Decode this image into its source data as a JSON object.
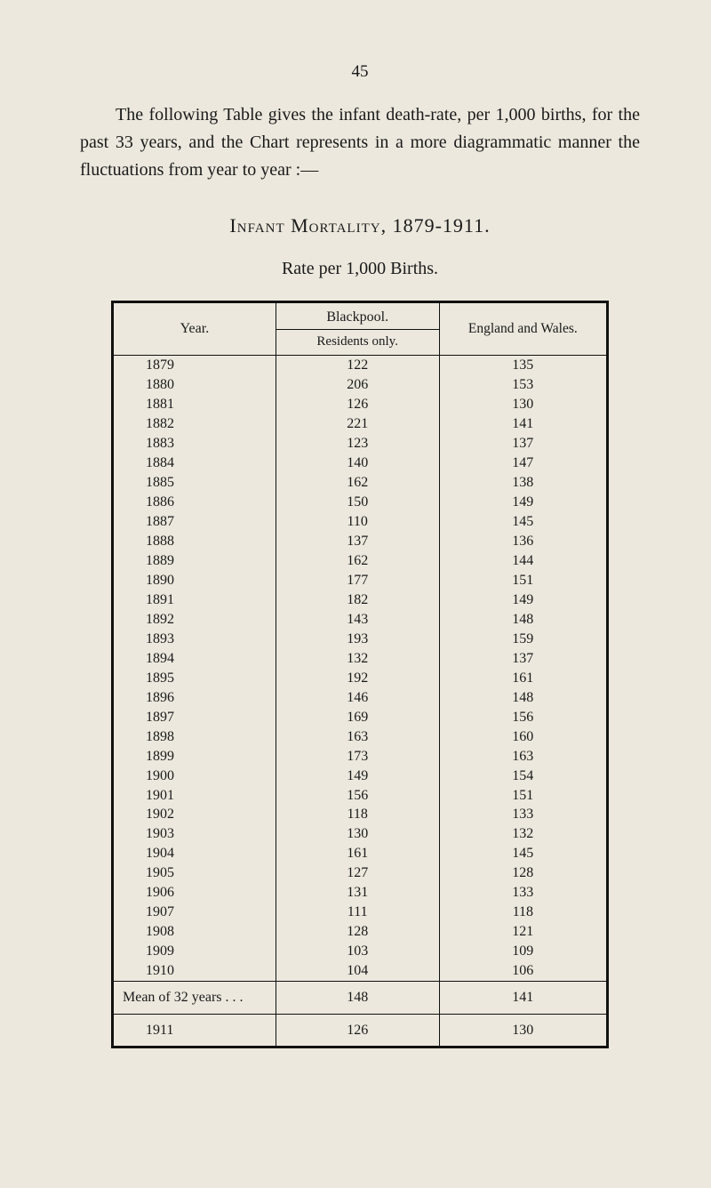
{
  "page_number": "45",
  "intro_text": "The following Table gives the infant death-rate, per 1,000 births, for the past 33 years, and the Chart represents in a more diagrammatic manner the fluctuations from year to year :—",
  "heading_main": "Infant Mortality, 1879-1911.",
  "heading_sub": "Rate per 1,000 Births.",
  "table": {
    "type": "table",
    "columns": {
      "year": "Year.",
      "blackpool": "Blackpool.",
      "residents": "Residents only.",
      "england": "England and Wales."
    },
    "rows": [
      {
        "year": "1879",
        "residents": "122",
        "england": "135"
      },
      {
        "year": "1880",
        "residents": "206",
        "england": "153"
      },
      {
        "year": "1881",
        "residents": "126",
        "england": "130"
      },
      {
        "year": "1882",
        "residents": "221",
        "england": "141"
      },
      {
        "year": "1883",
        "residents": "123",
        "england": "137"
      },
      {
        "year": "1884",
        "residents": "140",
        "england": "147"
      },
      {
        "year": "1885",
        "residents": "162",
        "england": "138"
      },
      {
        "year": "1886",
        "residents": "150",
        "england": "149"
      },
      {
        "year": "1887",
        "residents": "110",
        "england": "145"
      },
      {
        "year": "1888",
        "residents": "137",
        "england": "136"
      },
      {
        "year": "1889",
        "residents": "162",
        "england": "144"
      },
      {
        "year": "1890",
        "residents": "177",
        "england": "151"
      },
      {
        "year": "1891",
        "residents": "182",
        "england": "149"
      },
      {
        "year": "1892",
        "residents": "143",
        "england": "148"
      },
      {
        "year": "1893",
        "residents": "193",
        "england": "159"
      },
      {
        "year": "1894",
        "residents": "132",
        "england": "137"
      },
      {
        "year": "1895",
        "residents": "192",
        "england": "161"
      },
      {
        "year": "1896",
        "residents": "146",
        "england": "148"
      },
      {
        "year": "1897",
        "residents": "169",
        "england": "156"
      },
      {
        "year": "1898",
        "residents": "163",
        "england": "160"
      },
      {
        "year": "1899",
        "residents": "173",
        "england": "163"
      },
      {
        "year": "1900",
        "residents": "149",
        "england": "154"
      },
      {
        "year": "1901",
        "residents": "156",
        "england": "151"
      },
      {
        "year": "1902",
        "residents": "118",
        "england": "133"
      },
      {
        "year": "1903",
        "residents": "130",
        "england": "132"
      },
      {
        "year": "1904",
        "residents": "161",
        "england": "145"
      },
      {
        "year": "1905",
        "residents": "127",
        "england": "128"
      },
      {
        "year": "1906",
        "residents": "131",
        "england": "133"
      },
      {
        "year": "1907",
        "residents": "111",
        "england": "118"
      },
      {
        "year": "1908",
        "residents": "128",
        "england": "121"
      },
      {
        "year": "1909",
        "residents": "103",
        "england": "109"
      },
      {
        "year": "1910",
        "residents": "104",
        "england": "106"
      }
    ],
    "mean_row": {
      "label": "Mean of 32 years . . .",
      "residents": "148",
      "england": "141"
    },
    "final_row": {
      "year": "1911",
      "residents": "126",
      "england": "130"
    },
    "column_widths": [
      "33%",
      "33%",
      "34%"
    ],
    "border_color": "#111111",
    "background_color": "#ece8dd",
    "font_size_body": 16,
    "font_size_header": 16
  },
  "colors": {
    "page_background": "#ece8dd",
    "text": "#1a1a1a",
    "border": "#111111"
  },
  "typography": {
    "body_fontsize": 20,
    "heading_fontsize": 22,
    "sub_heading_fontsize": 20,
    "page_number_fontsize": 19,
    "font_family": "serif"
  }
}
